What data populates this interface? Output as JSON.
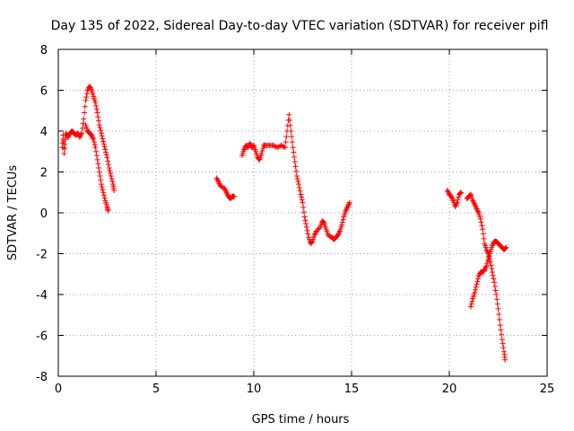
{
  "chart_data": {
    "type": "scatter",
    "title": "Day 135 of 2022, Sidereal Day-to-day VTEC variation (SDTVAR) for receiver pifl",
    "xlabel": "GPS time / hours",
    "ylabel": "SDTVAR / TECUs",
    "xlim": [
      0,
      25
    ],
    "ylim": [
      -8,
      8
    ],
    "xticks": [
      0,
      5,
      10,
      15,
      20,
      25
    ],
    "yticks": [
      -8,
      -6,
      -4,
      -2,
      0,
      2,
      4,
      6,
      8
    ],
    "grid": true,
    "marker": "plus",
    "color": "#ff0000",
    "series": [
      {
        "name": "SDTVAR",
        "segments": [
          [
            [
              0.2,
              3.2
            ],
            [
              0.25,
              3.8
            ],
            [
              0.3,
              2.9
            ],
            [
              0.35,
              3.6
            ],
            [
              0.4,
              3.9
            ],
            [
              0.5,
              3.7
            ],
            [
              0.6,
              3.9
            ],
            [
              0.7,
              4.0
            ],
            [
              0.8,
              3.9
            ],
            [
              0.9,
              3.8
            ],
            [
              1.0,
              3.9
            ],
            [
              1.1,
              3.7
            ],
            [
              1.2,
              3.9
            ],
            [
              1.3,
              4.6
            ],
            [
              1.4,
              5.5
            ],
            [
              1.5,
              6.0
            ],
            [
              1.6,
              6.2
            ],
            [
              1.7,
              6.0
            ],
            [
              1.8,
              5.7
            ],
            [
              1.9,
              5.4
            ],
            [
              2.0,
              4.9
            ],
            [
              2.1,
              4.3
            ],
            [
              2.2,
              3.9
            ],
            [
              2.3,
              3.5
            ],
            [
              2.4,
              3.1
            ],
            [
              2.5,
              2.7
            ],
            [
              2.6,
              2.2
            ],
            [
              2.7,
              1.8
            ],
            [
              2.8,
              1.4
            ],
            [
              2.85,
              1.1
            ]
          ],
          [
            [
              1.4,
              4.3
            ],
            [
              1.5,
              4.0
            ],
            [
              1.6,
              3.9
            ],
            [
              1.7,
              3.8
            ],
            [
              1.8,
              3.6
            ],
            [
              1.9,
              3.2
            ],
            [
              2.0,
              2.6
            ],
            [
              2.1,
              2.0
            ],
            [
              2.2,
              1.4
            ],
            [
              2.3,
              1.0
            ],
            [
              2.4,
              0.6
            ],
            [
              2.5,
              0.3
            ],
            [
              2.55,
              0.1
            ]
          ],
          [
            [
              8.1,
              1.7
            ],
            [
              8.2,
              1.5
            ],
            [
              8.3,
              1.3
            ],
            [
              8.5,
              1.2
            ],
            [
              8.6,
              1.0
            ],
            [
              8.7,
              0.8
            ],
            [
              8.8,
              0.7
            ],
            [
              8.9,
              0.8
            ],
            [
              9.0,
              0.8
            ]
          ],
          [
            [
              9.4,
              2.8
            ],
            [
              9.5,
              3.1
            ],
            [
              9.6,
              3.3
            ],
            [
              9.7,
              3.2
            ],
            [
              9.8,
              3.4
            ],
            [
              9.9,
              3.2
            ],
            [
              10.0,
              3.3
            ],
            [
              10.1,
              3.0
            ],
            [
              10.2,
              2.7
            ],
            [
              10.3,
              2.6
            ],
            [
              10.4,
              2.9
            ],
            [
              10.5,
              3.3
            ],
            [
              10.6,
              3.3
            ],
            [
              10.8,
              3.3
            ],
            [
              11.0,
              3.3
            ],
            [
              11.2,
              3.2
            ],
            [
              11.4,
              3.3
            ],
            [
              11.6,
              3.2
            ],
            [
              11.7,
              4.0
            ],
            [
              11.8,
              4.8
            ],
            [
              11.9,
              4.0
            ],
            [
              12.0,
              3.2
            ],
            [
              12.1,
              2.5
            ],
            [
              12.2,
              1.8
            ],
            [
              12.3,
              1.4
            ],
            [
              12.4,
              0.9
            ],
            [
              12.5,
              0.5
            ],
            [
              12.6,
              -0.2
            ],
            [
              12.7,
              -0.7
            ],
            [
              12.8,
              -1.2
            ],
            [
              12.9,
              -1.5
            ],
            [
              13.0,
              -1.4
            ],
            [
              13.1,
              -1.1
            ],
            [
              13.2,
              -0.9
            ],
            [
              13.4,
              -0.7
            ],
            [
              13.5,
              -0.4
            ],
            [
              13.6,
              -0.5
            ],
            [
              13.7,
              -0.8
            ],
            [
              13.8,
              -1.1
            ],
            [
              14.0,
              -1.2
            ],
            [
              14.1,
              -1.3
            ],
            [
              14.2,
              -1.2
            ],
            [
              14.3,
              -1.1
            ],
            [
              14.4,
              -0.9
            ],
            [
              14.5,
              -0.6
            ],
            [
              14.6,
              -0.2
            ],
            [
              14.7,
              0.1
            ],
            [
              14.8,
              0.3
            ],
            [
              14.9,
              0.5
            ]
          ],
          [
            [
              19.9,
              1.1
            ],
            [
              20.0,
              0.9
            ],
            [
              20.1,
              0.8
            ],
            [
              20.2,
              0.6
            ],
            [
              20.3,
              0.3
            ],
            [
              20.4,
              0.5
            ],
            [
              20.5,
              0.9
            ],
            [
              20.6,
              1.0
            ]
          ],
          [
            [
              20.9,
              0.7
            ],
            [
              21.0,
              0.8
            ],
            [
              21.1,
              0.9
            ],
            [
              21.2,
              0.6
            ],
            [
              21.3,
              0.4
            ],
            [
              21.4,
              0.2
            ],
            [
              21.5,
              0.0
            ],
            [
              21.6,
              -0.3
            ],
            [
              21.7,
              -0.8
            ],
            [
              21.8,
              -1.5
            ],
            [
              21.9,
              -1.8
            ],
            [
              22.0,
              -2.0
            ],
            [
              22.1,
              -2.4
            ],
            [
              22.2,
              -2.9
            ],
            [
              22.3,
              -3.4
            ],
            [
              22.4,
              -4.0
            ],
            [
              22.5,
              -4.7
            ],
            [
              22.6,
              -5.5
            ],
            [
              22.7,
              -6.2
            ],
            [
              22.8,
              -6.8
            ],
            [
              22.85,
              -7.2
            ]
          ],
          [
            [
              21.1,
              -4.6
            ],
            [
              21.2,
              -4.2
            ],
            [
              21.3,
              -3.9
            ],
            [
              21.4,
              -3.5
            ],
            [
              21.5,
              -3.1
            ],
            [
              21.6,
              -2.9
            ],
            [
              21.7,
              -2.9
            ],
            [
              21.8,
              -2.8
            ],
            [
              21.9,
              -2.6
            ],
            [
              22.0,
              -2.2
            ],
            [
              22.1,
              -1.9
            ],
            [
              22.2,
              -1.6
            ],
            [
              22.3,
              -1.4
            ],
            [
              22.4,
              -1.4
            ],
            [
              22.5,
              -1.5
            ],
            [
              22.6,
              -1.6
            ],
            [
              22.7,
              -1.7
            ],
            [
              22.8,
              -1.8
            ],
            [
              22.9,
              -1.7
            ]
          ]
        ]
      }
    ]
  }
}
